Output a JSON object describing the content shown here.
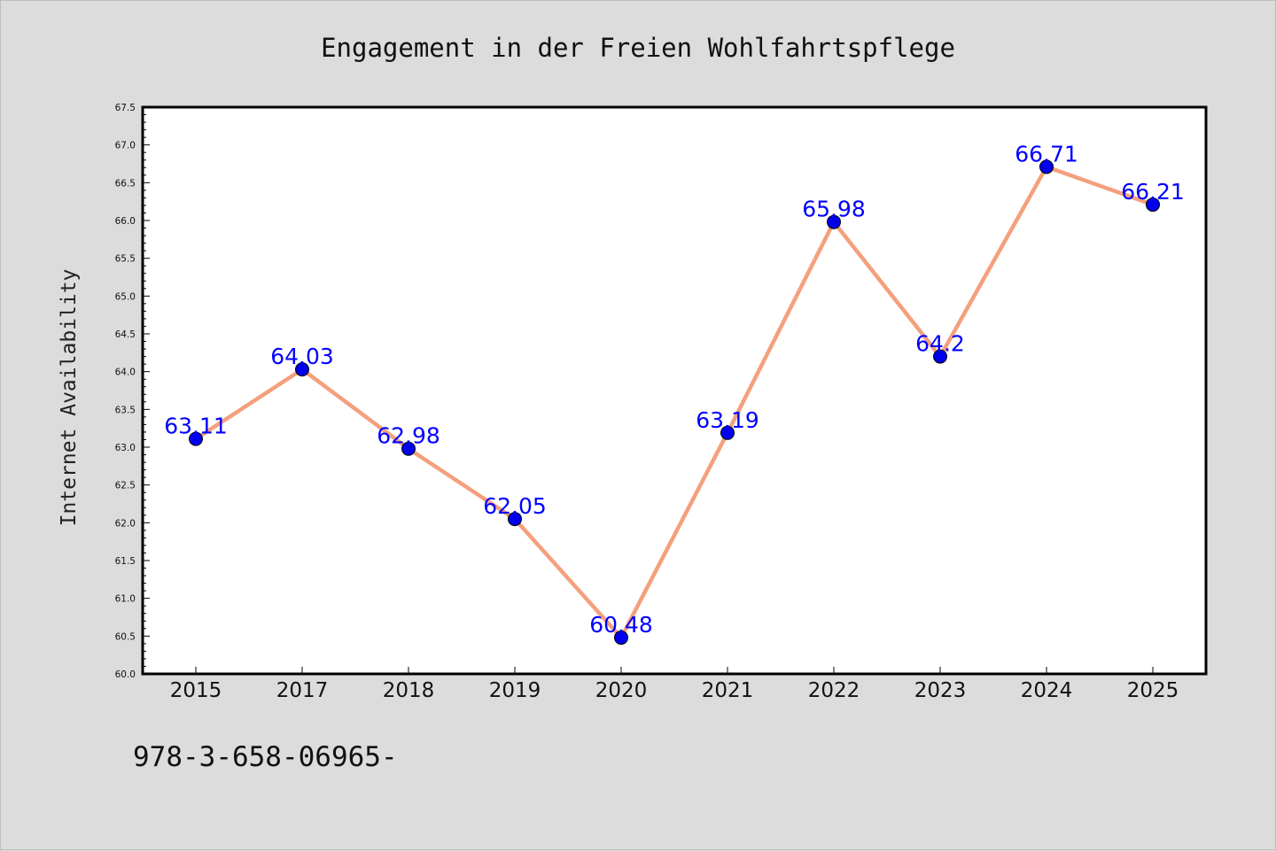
{
  "chart_data": {
    "type": "line",
    "title": "Engagement in der Freien Wohlfahrtspflege",
    "xlabel": "",
    "ylabel": "Internet Availability",
    "categories": [
      "2015",
      "2017",
      "2018",
      "2019",
      "2020",
      "2021",
      "2022",
      "2023",
      "2024",
      "2025"
    ],
    "series": [
      {
        "values": [
          63.11,
          64.03,
          62.98,
          62.05,
          60.48,
          63.19,
          65.98,
          64.2,
          66.71,
          66.21
        ],
        "labels": [
          "63.11",
          "64.03",
          "62.98",
          "62.05",
          "60.48",
          "63.19",
          "65.98",
          "64.2",
          "66.71",
          "66.21"
        ]
      }
    ],
    "ylim": [
      60.0,
      67.5
    ],
    "yticks": [
      "60.0",
      "60.5",
      "61.0",
      "61.5",
      "62.0",
      "62.5",
      "63.0",
      "63.5",
      "64.0",
      "64.5",
      "65.0",
      "65.5",
      "66.0",
      "66.5",
      "67.0",
      "67.5"
    ],
    "grid": false,
    "legend": "none",
    "colors": {
      "line": "#f4a07d",
      "marker": "#0000ee",
      "data_label": "#0000ff",
      "plot_background": "#ffffff",
      "figure_background": "#dcdcdc"
    }
  },
  "footer": {
    "text": "978-3-658-06965-"
  }
}
